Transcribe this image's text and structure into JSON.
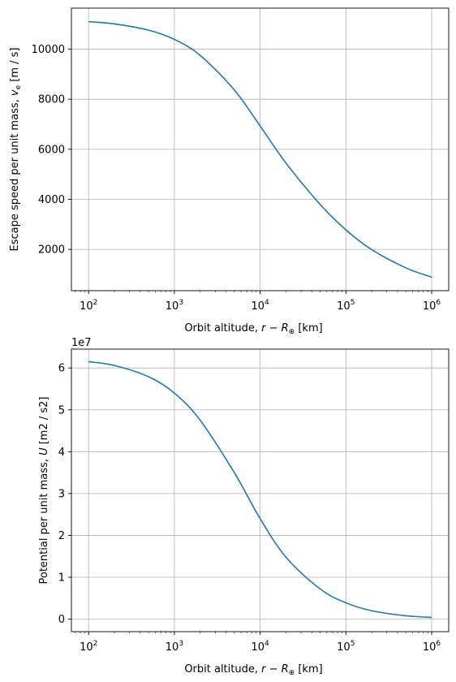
{
  "chart_data": [
    {
      "type": "line",
      "xscale": "log",
      "xlabel": {
        "text": "Orbit altitude, ",
        "math": "r − R",
        "sub": "⊕",
        "unit": " [km]"
      },
      "ylabel": {
        "text": "Escape speed per unit mass, ",
        "math": "v",
        "sub": "e",
        "unit": " [m / s]"
      },
      "xlim": [
        63,
        1580000
      ],
      "ylim": [
        350,
        11640
      ],
      "xticks": [
        {
          "base": "10",
          "exp": "2",
          "value": 100
        },
        {
          "base": "10",
          "exp": "3",
          "value": 1000
        },
        {
          "base": "10",
          "exp": "4",
          "value": 10000
        },
        {
          "base": "10",
          "exp": "5",
          "value": 100000
        },
        {
          "base": "10",
          "exp": "6",
          "value": 1000000
        }
      ],
      "yticks": [
        {
          "label": "2000",
          "value": 2000
        },
        {
          "label": "4000",
          "value": 4000
        },
        {
          "label": "6000",
          "value": 6000
        },
        {
          "label": "8000",
          "value": 8000
        },
        {
          "label": "10000",
          "value": 10000
        }
      ],
      "grid": true,
      "color": "#1f77b4",
      "series": [
        {
          "x": [
            100,
            200,
            500,
            1000,
            2000,
            5000,
            10000,
            20000,
            50000,
            100000,
            200000,
            500000,
            1000000
          ],
          "y": [
            11100,
            11010,
            10760,
            10390,
            9750,
            8370,
            6930,
            5450,
            3800,
            2780,
            1990,
            1260,
            890
          ]
        }
      ]
    },
    {
      "type": "line",
      "xscale": "log",
      "xlabel": {
        "text": "Orbit altitude, ",
        "math": "r − R",
        "sub": "⊕",
        "unit": " [km]"
      },
      "ylabel": {
        "text": "Potential per unit mass, ",
        "math": "U",
        "sub": "",
        "unit": " [m2 / s2]"
      },
      "offset_text": "1e7",
      "xlim": [
        63,
        1580000
      ],
      "ylim": [
        -0.3,
        6.45
      ],
      "xticks": [
        {
          "base": "10",
          "exp": "2",
          "value": 100
        },
        {
          "base": "10",
          "exp": "3",
          "value": 1000
        },
        {
          "base": "10",
          "exp": "4",
          "value": 10000
        },
        {
          "base": "10",
          "exp": "5",
          "value": 100000
        },
        {
          "base": "10",
          "exp": "6",
          "value": 1000000
        }
      ],
      "yticks": [
        {
          "label": "0",
          "value": 0
        },
        {
          "label": "1",
          "value": 1
        },
        {
          "label": "2",
          "value": 2
        },
        {
          "label": "3",
          "value": 3
        },
        {
          "label": "4",
          "value": 4
        },
        {
          "label": "5",
          "value": 5
        },
        {
          "label": "6",
          "value": 6
        }
      ],
      "grid": true,
      "color": "#1f77b4",
      "series": [
        {
          "x": [
            100,
            200,
            500,
            1000,
            2000,
            5000,
            10000,
            20000,
            50000,
            100000,
            200000,
            500000,
            1000000
          ],
          "y": [
            6.15,
            6.06,
            5.79,
            5.4,
            4.75,
            3.5,
            2.4,
            1.48,
            0.72,
            0.39,
            0.2,
            0.08,
            0.04
          ]
        }
      ]
    }
  ]
}
